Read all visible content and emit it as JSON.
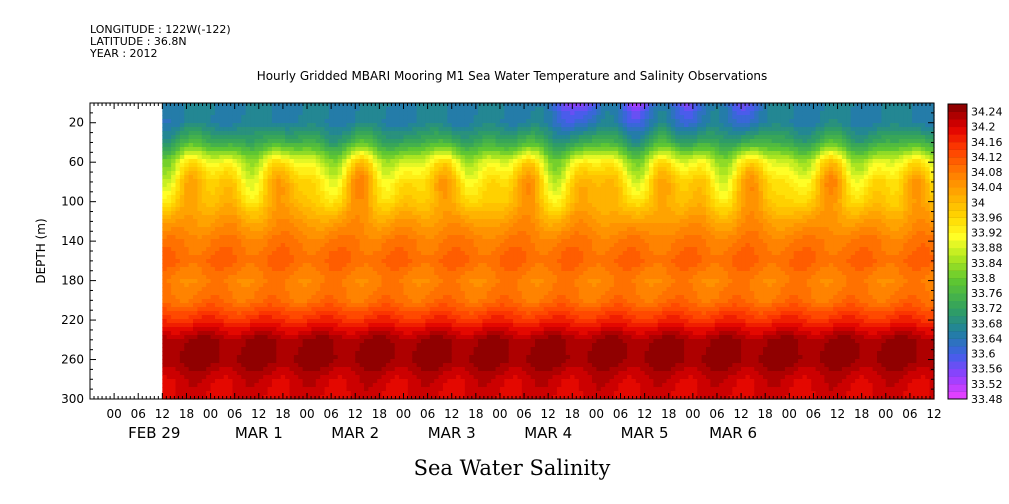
{
  "header": {
    "longitude": "LONGITUDE : 122W(-122)",
    "latitude": "LATITUDE : 36.8N",
    "year": "YEAR : 2012"
  },
  "chart_data": {
    "type": "heatmap",
    "title": "Hourly Gridded MBARI Mooring M1 Sea Water Temperature and Salinity Observations",
    "variable_label": "Sea Water Salinity",
    "ylabel": "DEPTH (m)",
    "y_axis": {
      "range": [
        0,
        300
      ],
      "reversed": true,
      "ticks": [
        20,
        60,
        100,
        140,
        180,
        220,
        260,
        300
      ]
    },
    "x_axis": {
      "range_hours": [
        -24,
        186
      ],
      "data_start_hour": -6,
      "hour_ticks": [
        {
          "h": -18,
          "label": "00"
        },
        {
          "h": -12,
          "label": "06"
        },
        {
          "h": -6,
          "label": "12"
        },
        {
          "h": 0,
          "label": "18"
        },
        {
          "h": 6,
          "label": "00"
        },
        {
          "h": 12,
          "label": "06"
        },
        {
          "h": 18,
          "label": "12"
        },
        {
          "h": 24,
          "label": "18"
        },
        {
          "h": 30,
          "label": "00"
        },
        {
          "h": 36,
          "label": "06"
        },
        {
          "h": 42,
          "label": "12"
        },
        {
          "h": 48,
          "label": "18"
        },
        {
          "h": 54,
          "label": "00"
        },
        {
          "h": 60,
          "label": "06"
        },
        {
          "h": 66,
          "label": "12"
        },
        {
          "h": 72,
          "label": "18"
        },
        {
          "h": 78,
          "label": "00"
        },
        {
          "h": 84,
          "label": "06"
        },
        {
          "h": 90,
          "label": "12"
        },
        {
          "h": 96,
          "label": "18"
        },
        {
          "h": 102,
          "label": "00"
        },
        {
          "h": 108,
          "label": "06"
        },
        {
          "h": 114,
          "label": "12"
        },
        {
          "h": 120,
          "label": "18"
        },
        {
          "h": 126,
          "label": "00"
        },
        {
          "h": 132,
          "label": "06"
        },
        {
          "h": 138,
          "label": "12"
        },
        {
          "h": 144,
          "label": "18"
        },
        {
          "h": 150,
          "label": "00"
        },
        {
          "h": 156,
          "label": "06"
        },
        {
          "h": 162,
          "label": "12"
        },
        {
          "h": 168,
          "label": "18"
        },
        {
          "h": 174,
          "label": "00"
        },
        {
          "h": 180,
          "label": "06"
        },
        {
          "h": 186,
          "label": "12"
        },
        {
          "h": 192,
          "label": "18"
        }
      ],
      "day_labels": [
        {
          "h": -8,
          "label": "FEB 29"
        },
        {
          "h": 18,
          "label": "MAR  1"
        },
        {
          "h": 42,
          "label": "MAR  2"
        },
        {
          "h": 66,
          "label": "MAR  3"
        },
        {
          "h": 90,
          "label": "MAR  4"
        },
        {
          "h": 114,
          "label": "MAR  5"
        },
        {
          "h": 136,
          "label": "MAR  6"
        }
      ]
    },
    "colorbar": {
      "min": 33.48,
      "max": 34.26,
      "step": 0.02,
      "labels": [
        "34.24",
        "34.2",
        "34.16",
        "34.12",
        "34.08",
        "34.04",
        "34",
        "33.96",
        "33.92",
        "33.88",
        "33.84",
        "33.8",
        "33.76",
        "33.72",
        "33.68",
        "33.64",
        "33.6",
        "33.56",
        "33.52",
        "33.48"
      ]
    },
    "salinity_profile": {
      "depths": [
        0,
        20,
        40,
        60,
        80,
        100,
        120,
        140,
        160,
        180,
        200,
        220,
        240,
        260,
        280,
        300
      ],
      "values": [
        33.66,
        33.66,
        33.74,
        33.9,
        33.97,
        33.99,
        34.04,
        34.08,
        34.1,
        34.07,
        34.09,
        34.16,
        34.24,
        34.25,
        34.21,
        34.2
      ]
    },
    "surface_fresh_events": [
      {
        "hour": 94,
        "strength": 0.1
      },
      {
        "hour": 100,
        "strength": 0.08
      },
      {
        "hour": 112,
        "strength": 0.12
      },
      {
        "hour": 124,
        "strength": 0.1
      },
      {
        "hour": 138,
        "strength": 0.1
      }
    ]
  }
}
